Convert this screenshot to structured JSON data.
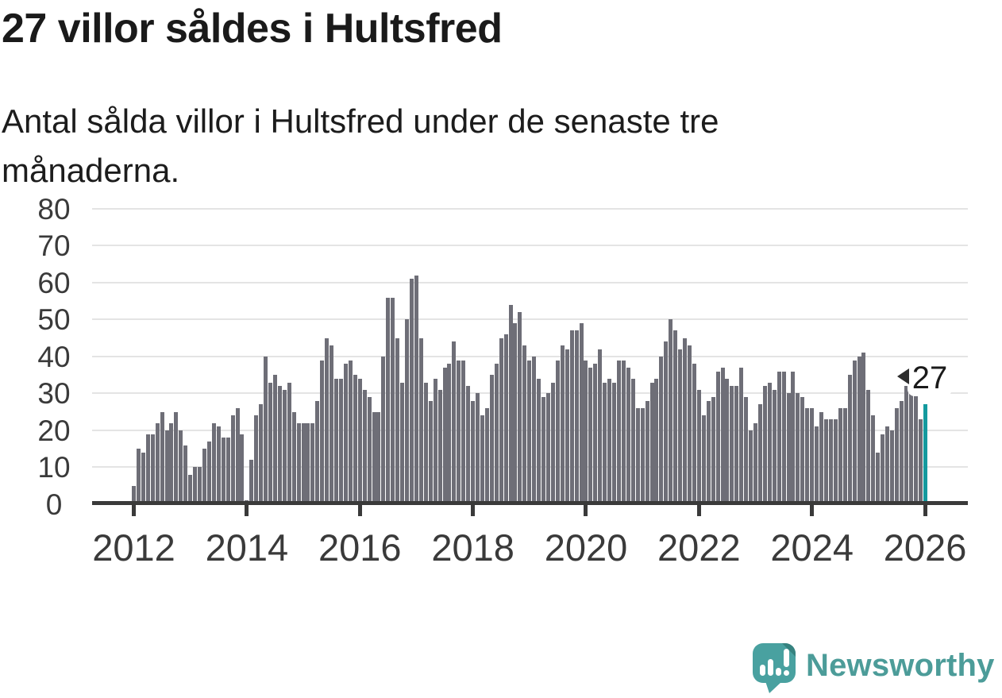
{
  "title": "27 villor såldes i Hultsfred",
  "subtitle": "Antal sålda villor i Hultsfred under de senaste tre månaderna.",
  "annotation": {
    "label": "27"
  },
  "branding": {
    "name": "Newsworthy"
  },
  "colors": {
    "bar": "#6e6e77",
    "highlight": "#149a9e",
    "grid": "#e4e4e4",
    "axis": "#3a3a3a",
    "brand_teal": "#4c9c99"
  },
  "chart_data": {
    "type": "bar",
    "title": "27 villor såldes i Hultsfred",
    "xlabel": "",
    "ylabel": "",
    "ylim": [
      0,
      80
    ],
    "grid": true,
    "y_ticks": [
      0,
      10,
      20,
      30,
      40,
      50,
      60,
      70,
      80
    ],
    "x_tick_labels": [
      "2012",
      "2014",
      "2016",
      "2018",
      "2020",
      "2022",
      "2024",
      "2026"
    ],
    "x_tick_indices": [
      0,
      24,
      48,
      72,
      96,
      120,
      144,
      168
    ],
    "values": [
      5,
      15,
      14,
      19,
      19,
      22,
      25,
      20,
      22,
      25,
      20,
      16,
      8,
      10,
      10,
      15,
      17,
      22,
      21,
      18,
      18,
      24,
      26,
      19,
      1,
      12,
      24,
      27,
      40,
      33,
      35,
      32,
      31,
      33,
      25,
      22,
      22,
      22,
      22,
      28,
      39,
      45,
      43,
      34,
      34,
      38,
      39,
      35,
      34,
      31,
      29,
      25,
      25,
      40,
      56,
      56,
      45,
      33,
      50,
      61,
      62,
      45,
      33,
      28,
      34,
      31,
      37,
      38,
      44,
      39,
      39,
      32,
      28,
      30,
      24,
      26,
      35,
      38,
      45,
      46,
      54,
      49,
      52,
      43,
      39,
      40,
      34,
      29,
      30,
      33,
      39,
      43,
      42,
      47,
      47,
      49,
      39,
      37,
      38,
      42,
      33,
      34,
      33,
      39,
      39,
      37,
      34,
      26,
      26,
      28,
      33,
      34,
      40,
      44,
      50,
      47,
      42,
      45,
      43,
      38,
      31,
      24,
      28,
      29,
      36,
      37,
      34,
      32,
      32,
      37,
      29,
      20,
      22,
      27,
      32,
      33,
      31,
      36,
      36,
      30,
      36,
      30,
      29,
      26,
      26,
      21,
      25,
      23,
      23,
      23,
      26,
      26,
      35,
      39,
      40,
      41,
      31,
      24,
      14,
      19,
      21,
      20,
      26,
      28,
      32,
      31,
      30,
      23,
      27
    ],
    "highlight": {
      "index": 168,
      "value": 27
    }
  }
}
